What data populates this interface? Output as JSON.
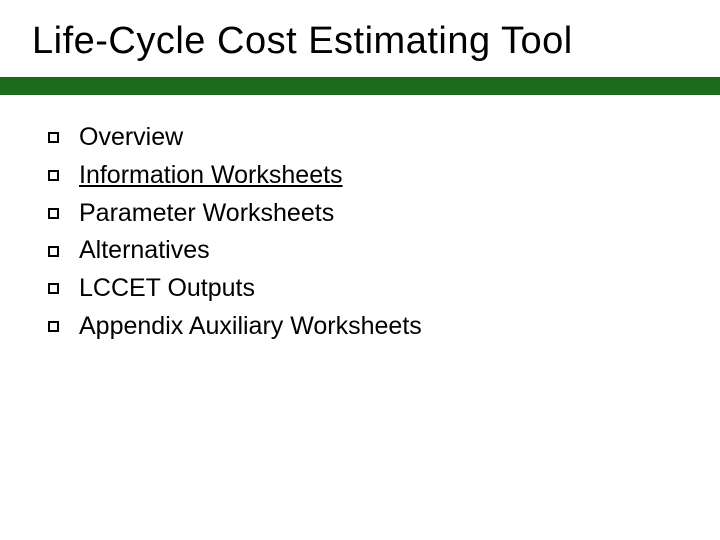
{
  "title": "Life-Cycle Cost Estimating Tool",
  "accent_color": "#1a6b1a",
  "title_fontsize": 38,
  "body_fontsize": 25,
  "text_color": "#000000",
  "background_color": "#ffffff",
  "bullets": {
    "marker_style": "hollow-square",
    "marker_size": 11,
    "marker_border_color": "#000000",
    "items": [
      {
        "label": "Overview",
        "underlined": false
      },
      {
        "label": "Information Worksheets",
        "underlined": true
      },
      {
        "label": "Parameter Worksheets",
        "underlined": false
      },
      {
        "label": "Alternatives",
        "underlined": false
      },
      {
        "label": "LCCET Outputs",
        "underlined": false
      },
      {
        "label": "Appendix Auxiliary Worksheets",
        "underlined": false
      }
    ]
  }
}
